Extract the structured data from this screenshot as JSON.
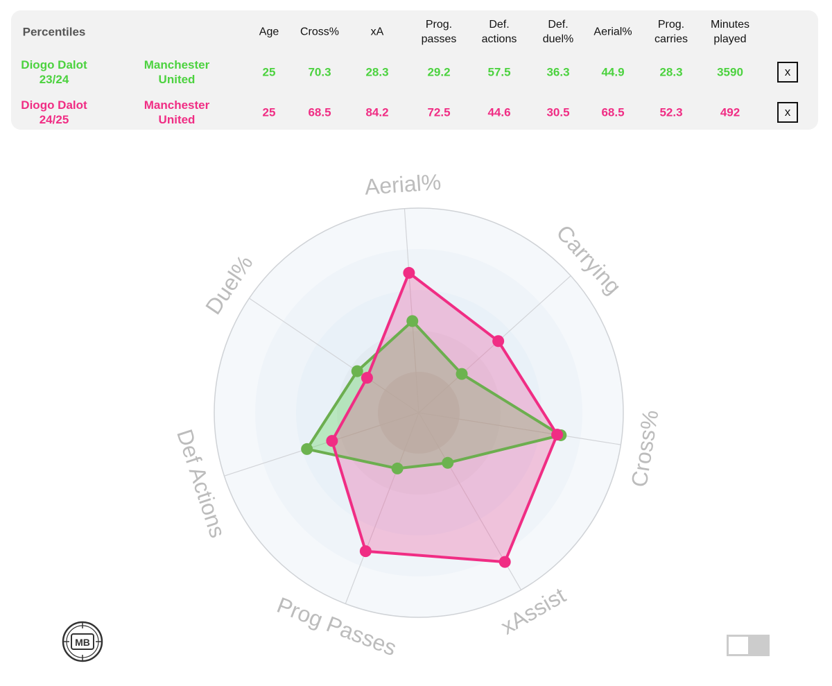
{
  "table": {
    "header": {
      "label": "Percentiles",
      "columns": [
        "Age",
        "Cross%",
        "xA",
        "Prog.\npasses",
        "Def.\nactions",
        "Def.\nduel%",
        "Aerial%",
        "Prog.\ncarries",
        "Minutes\nplayed"
      ]
    },
    "rows": [
      {
        "player": "Diogo Dalot\n23/24",
        "team": "Manchester\nUnited",
        "values": [
          "25",
          "70.3",
          "28.3",
          "29.2",
          "57.5",
          "36.3",
          "44.9",
          "28.3",
          "3590"
        ],
        "color": "#4cd23f",
        "remove_label": "x"
      },
      {
        "player": "Diogo Dalot\n24/25",
        "team": "Manchester\nUnited",
        "values": [
          "25",
          "68.5",
          "84.2",
          "72.5",
          "44.6",
          "30.5",
          "68.5",
          "52.3",
          "492"
        ],
        "color": "#f02d84",
        "remove_label": "x"
      }
    ]
  },
  "chart_data": {
    "type": "radar",
    "axes": [
      "Aerial%",
      "Carrying",
      "Cross%",
      "xAssist",
      "Prog Passes",
      "Def Actions",
      "Duel%"
    ],
    "range": [
      0,
      100
    ],
    "grid": true,
    "series": [
      {
        "name": "Diogo Dalot 23/24",
        "color": "#4cd23f",
        "values": [
          44.9,
          28.3,
          70.3,
          28.3,
          29.2,
          57.5,
          36.3
        ]
      },
      {
        "name": "Diogo Dalot 24/25",
        "color": "#f02d84",
        "values": [
          68.5,
          52.3,
          68.5,
          84.2,
          72.5,
          44.6,
          30.5
        ]
      }
    ]
  },
  "footer": {
    "logo_text": "MB",
    "toggle_state": "off"
  }
}
